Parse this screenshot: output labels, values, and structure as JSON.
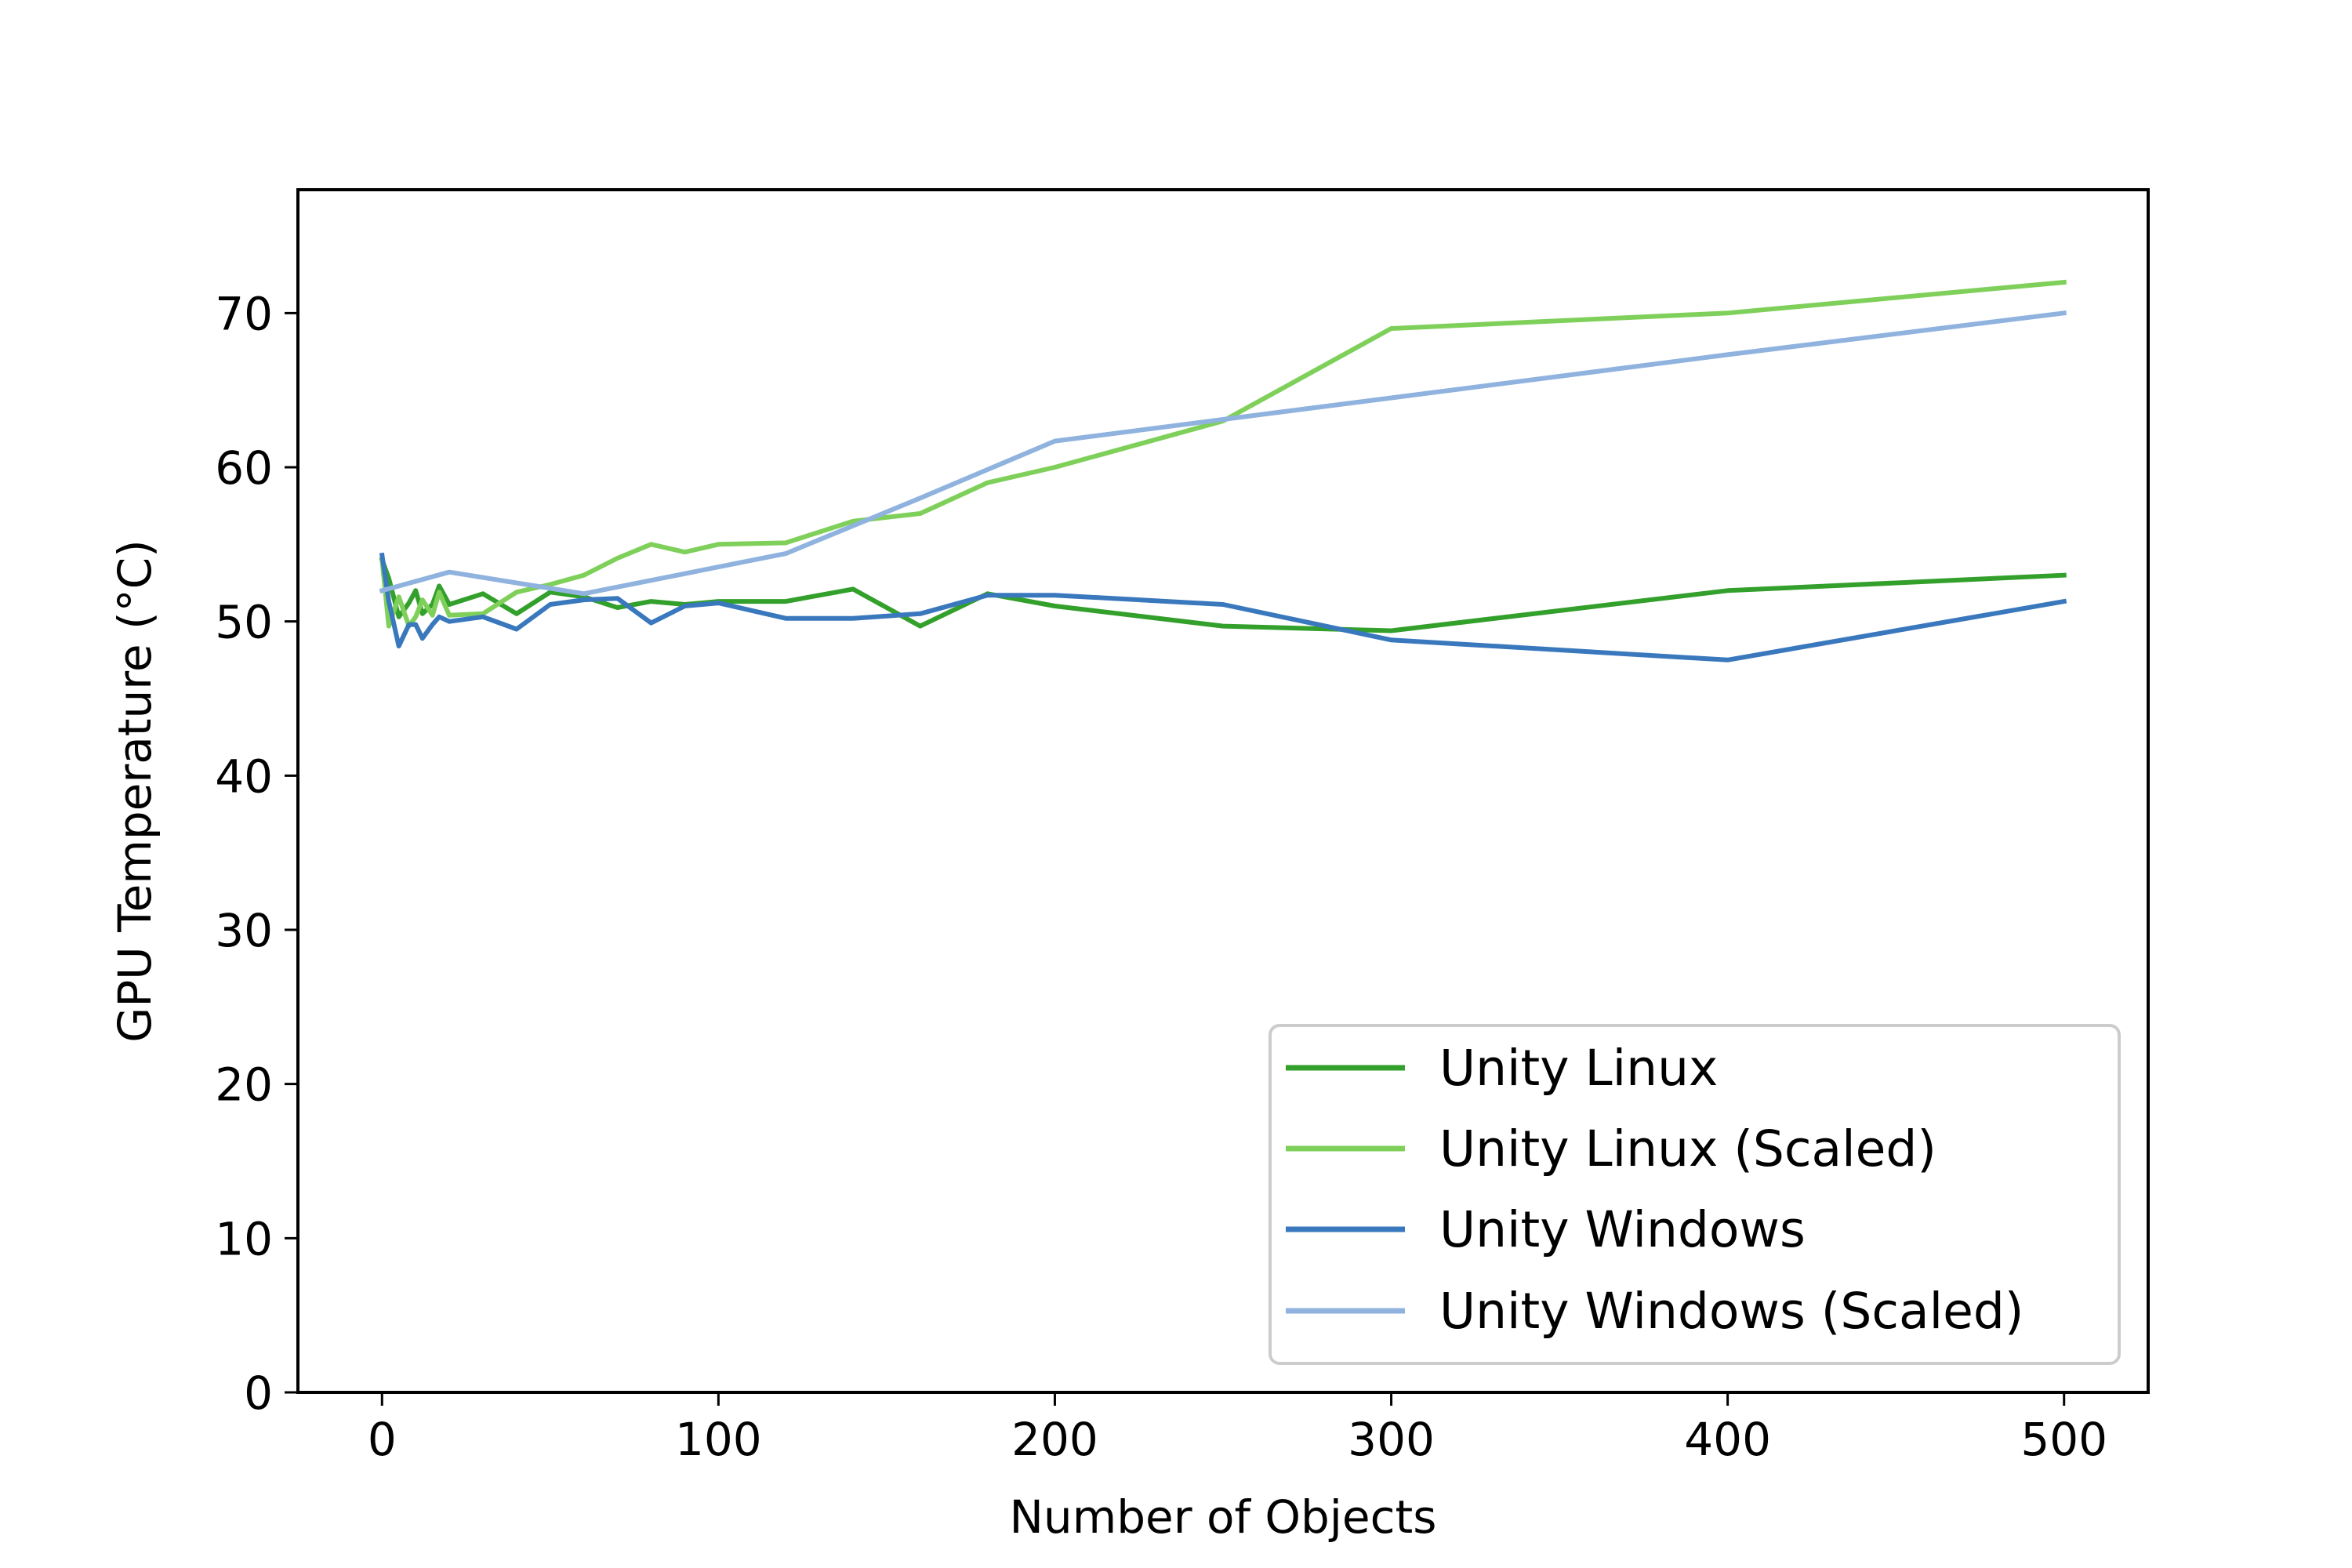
{
  "chart_data": {
    "type": "line",
    "title": "",
    "xlabel": "Number of Objects",
    "ylabel": "GPU Temperature (°C)",
    "xlim": [
      -25,
      525
    ],
    "ylim": [
      0,
      78
    ],
    "xticks": [
      0,
      100,
      200,
      300,
      400,
      500
    ],
    "yticks": [
      0,
      10,
      20,
      30,
      40,
      50,
      60,
      70
    ],
    "grid": false,
    "legend_position": "bottom-right",
    "series": [
      {
        "name": "Unity Linux",
        "color": "#33a02c",
        "x": [
          0,
          2,
          5,
          8,
          10,
          12,
          15,
          17,
          20,
          30,
          40,
          50,
          60,
          70,
          80,
          90,
          100,
          120,
          140,
          160,
          180,
          200,
          250,
          300,
          400,
          500
        ],
        "y": [
          54,
          52.8,
          50.3,
          51.2,
          52,
          50.5,
          51.1,
          52.3,
          51.1,
          51.8,
          50.5,
          51.9,
          51.6,
          50.9,
          51.3,
          51.1,
          51.3,
          51.3,
          52.1,
          49.7,
          51.8,
          51,
          49.7,
          49.4,
          52,
          53
        ]
      },
      {
        "name": "Unity Linux (Scaled)",
        "color": "#7fd05a",
        "x": [
          0,
          2,
          5,
          8,
          10,
          12,
          15,
          17,
          20,
          30,
          40,
          50,
          60,
          70,
          80,
          90,
          100,
          120,
          140,
          160,
          180,
          200,
          250,
          300,
          400,
          500
        ],
        "y": [
          54,
          49.7,
          51.6,
          49.7,
          50.3,
          51.4,
          50.4,
          51.9,
          50.4,
          50.5,
          51.9,
          52.4,
          53,
          54.1,
          55,
          54.5,
          55,
          55.1,
          56.5,
          57,
          59,
          60,
          63,
          69,
          70,
          72
        ]
      },
      {
        "name": "Unity Windows",
        "color": "#3a78bd",
        "x": [
          0,
          2,
          5,
          8,
          10,
          12,
          15,
          17,
          20,
          30,
          40,
          50,
          60,
          70,
          80,
          90,
          100,
          120,
          140,
          160,
          180,
          200,
          250,
          300,
          400,
          500
        ],
        "y": [
          54.3,
          51.3,
          48.4,
          49.8,
          49.8,
          48.9,
          49.8,
          50.3,
          50,
          50.3,
          49.5,
          51.1,
          51.4,
          51.5,
          49.9,
          51,
          51.2,
          50.2,
          50.2,
          50.5,
          51.7,
          51.7,
          51.1,
          48.8,
          47.5,
          51.3
        ]
      },
      {
        "name": "Unity Windows (Scaled)",
        "color": "#8fb3de",
        "x": [
          0,
          20,
          40,
          60,
          120,
          160,
          200,
          250,
          300,
          400,
          500
        ],
        "y": [
          52,
          53.2,
          52.5,
          51.8,
          54.4,
          58,
          61.7,
          63.1,
          64.5,
          67.3,
          70
        ]
      }
    ]
  }
}
